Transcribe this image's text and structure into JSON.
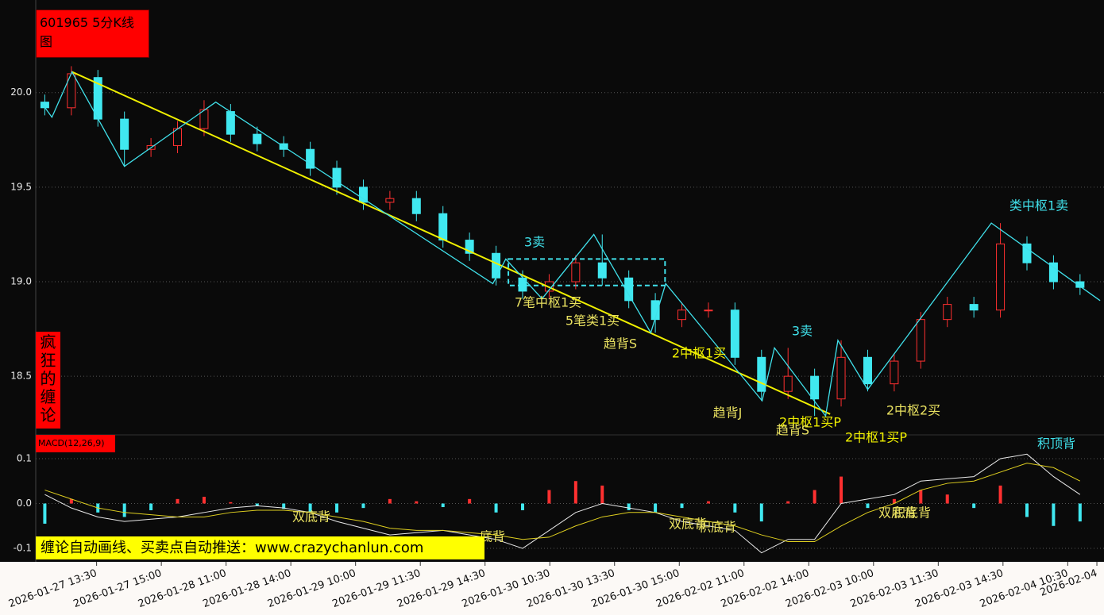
{
  "header": {
    "title": "601965 5分K线图",
    "side_label": "疯狂的缠论",
    "banner": "缠论自动画线、买卖点自动推送：www.crazychanlun.com"
  },
  "chart_data": [
    {
      "type": "candlestick",
      "x": [
        -0.8,
        -0.39,
        0.02,
        0.43,
        0.84,
        1.25,
        1.66,
        2.07,
        2.48,
        2.89,
        3.3,
        3.71,
        4.12,
        4.53,
        4.94,
        5.35,
        5.76,
        6.17,
        6.58,
        6.99,
        7.4,
        7.81,
        8.22,
        8.63,
        9.04,
        9.45,
        9.86,
        10.27,
        10.68,
        11.09,
        11.5,
        11.91,
        12.32,
        12.73,
        13.14,
        13.55,
        13.96,
        14.37,
        14.78,
        15.19
      ],
      "open": [
        19.95,
        19.92,
        20.08,
        19.86,
        19.7,
        19.72,
        19.81,
        19.9,
        19.78,
        19.73,
        19.7,
        19.6,
        19.5,
        19.42,
        19.44,
        19.36,
        19.22,
        19.15,
        19.02,
        18.95,
        19.0,
        19.1,
        19.02,
        18.9,
        18.8,
        18.85,
        18.85,
        18.6,
        18.42,
        18.5,
        18.38,
        18.6,
        18.46,
        18.58,
        18.8,
        18.88,
        18.85,
        19.2,
        19.1,
        19.0
      ],
      "high": [
        19.99,
        20.14,
        20.12,
        19.9,
        19.76,
        19.85,
        19.96,
        19.94,
        19.82,
        19.77,
        19.74,
        19.64,
        19.54,
        19.48,
        19.48,
        19.4,
        19.26,
        19.19,
        19.06,
        19.04,
        19.14,
        19.25,
        19.06,
        18.94,
        18.89,
        18.89,
        18.89,
        18.64,
        18.65,
        18.54,
        18.69,
        18.64,
        18.62,
        18.84,
        18.92,
        18.92,
        19.31,
        19.24,
        19.14,
        19.04
      ],
      "low": [
        19.88,
        19.88,
        19.82,
        19.61,
        19.66,
        19.68,
        19.77,
        19.74,
        19.69,
        19.66,
        19.56,
        19.46,
        19.38,
        19.38,
        19.32,
        19.18,
        19.11,
        18.98,
        18.91,
        18.91,
        18.96,
        18.98,
        18.86,
        18.73,
        18.76,
        18.81,
        18.56,
        18.37,
        18.38,
        18.29,
        18.34,
        18.42,
        18.42,
        18.54,
        18.76,
        18.81,
        18.81,
        19.06,
        18.96,
        18.93
      ],
      "close": [
        19.92,
        20.1,
        19.86,
        19.7,
        19.72,
        19.81,
        19.91,
        19.78,
        19.73,
        19.7,
        19.6,
        19.5,
        19.42,
        19.44,
        19.36,
        19.22,
        19.15,
        19.02,
        18.95,
        19.0,
        19.1,
        19.02,
        18.9,
        18.8,
        18.85,
        18.85,
        18.6,
        18.42,
        18.5,
        18.38,
        18.6,
        18.46,
        18.58,
        18.8,
        18.88,
        18.85,
        19.2,
        19.1,
        19.0,
        18.97
      ],
      "up_color": "#ff3030",
      "down_color": "#40e8f0",
      "strokes": {
        "color": "#40e0ea",
        "x": [
          -0.86,
          -0.69,
          -0.38,
          0.43,
          1.84,
          6.12,
          6.32,
          6.88,
          7.68,
          8.56,
          8.79,
          10.28,
          10.47,
          11.26,
          11.45,
          11.91,
          13.82,
          15.5
        ],
        "y": [
          19.95,
          19.87,
          20.11,
          19.61,
          19.95,
          18.99,
          19.12,
          18.91,
          19.25,
          18.73,
          18.99,
          18.37,
          18.65,
          18.29,
          18.69,
          18.43,
          19.31,
          18.9
        ]
      },
      "trend": {
        "color": "#f0f000",
        "x": [
          -0.38,
          11.33
        ],
        "y": [
          20.11,
          18.3
        ]
      },
      "center_box": {
        "color": "#40e0ea",
        "x": [
          6.36,
          8.78
        ],
        "y": [
          18.98,
          19.12
        ]
      },
      "annotations": [
        "3卖",
        "类中枢1卖",
        "3卖",
        "7笔中枢1买",
        "5笔类1买",
        "趋背S",
        "2中枢1买",
        "趋背J",
        "2中枢1买P",
        "趋背S",
        "2中枢1买P",
        "2中枢2买"
      ],
      "xlim": [
        -0.94,
        15.56
      ],
      "xticks": [
        {
          "value": 0,
          "label": "2026-01-27 13:30"
        },
        {
          "value": 1,
          "label": "2026-01-27 15:00"
        },
        {
          "value": 2,
          "label": "2026-01-28 11:00"
        },
        {
          "value": 3,
          "label": "2026-01-28 14:00"
        },
        {
          "value": 4,
          "label": "2026-01-29 10:00"
        },
        {
          "value": 5,
          "label": "2026-01-29 11:30"
        },
        {
          "value": 6,
          "label": "2026-01-29 14:30"
        },
        {
          "value": 7,
          "label": "2026-01-30 10:30"
        },
        {
          "value": 8,
          "label": "2026-01-30 13:30"
        },
        {
          "value": 9,
          "label": "2026-01-30 15:00"
        },
        {
          "value": 10,
          "label": "2026-02-02 11:00"
        },
        {
          "value": 11,
          "label": "2026-02-02 14:00"
        },
        {
          "value": 12,
          "label": "2026-02-03 10:00"
        },
        {
          "value": 13,
          "label": "2026-02-03 11:30"
        },
        {
          "value": 14,
          "label": "2026-02-03 14:30"
        },
        {
          "value": 15,
          "label": "2026-02-04 10:30"
        },
        {
          "value": 15.45,
          "label": "2026-02-04"
        }
      ],
      "ylim": [
        18.19,
        20.49
      ],
      "yticks": [
        18.5,
        {
          "value": 19,
          "label": "19.0"
        },
        19.5,
        {
          "value": 20,
          "label": "20.0"
        }
      ],
      "grid": true
    },
    {
      "type": "macd",
      "title": "MACD(12,26,9)",
      "x": [
        -0.8,
        -0.39,
        0.02,
        0.43,
        0.84,
        1.25,
        1.66,
        2.07,
        2.48,
        2.89,
        3.3,
        3.71,
        4.12,
        4.53,
        4.94,
        5.35,
        5.76,
        6.17,
        6.58,
        6.99,
        7.4,
        7.81,
        8.22,
        8.63,
        9.04,
        9.45,
        9.86,
        10.27,
        10.68,
        11.09,
        11.5,
        11.91,
        12.32,
        12.73,
        13.14,
        13.55,
        13.96,
        14.37,
        14.78,
        15.19
      ],
      "hist": {
        "up_color": "#ff3030",
        "down_color": "#40e8f0",
        "values": [
          -0.045,
          0.01,
          -0.02,
          -0.03,
          -0.015,
          0.01,
          0.015,
          0.003,
          -0.005,
          -0.012,
          -0.02,
          -0.02,
          -0.01,
          0.01,
          0.005,
          -0.008,
          0.01,
          -0.02,
          -0.015,
          0.03,
          0.05,
          0.04,
          -0.015,
          -0.02,
          -0.01,
          0.005,
          -0.02,
          -0.04,
          0.005,
          0.03,
          0.06,
          -0.01,
          0.01,
          0.03,
          0.02,
          -0.01,
          0.04,
          -0.03,
          -0.05,
          -0.04
        ]
      },
      "series": [
        {
          "color": "#e8e8e8",
          "values": [
            0.02,
            -0.01,
            -0.03,
            -0.04,
            -0.035,
            -0.03,
            -0.02,
            -0.01,
            -0.005,
            -0.01,
            -0.02,
            -0.04,
            -0.055,
            -0.07,
            -0.065,
            -0.06,
            -0.07,
            -0.08,
            -0.1,
            -0.06,
            -0.02,
            0.0,
            -0.01,
            -0.02,
            -0.04,
            -0.05,
            -0.06,
            -0.11,
            -0.08,
            -0.08,
            0.0,
            0.01,
            0.02,
            0.05,
            0.055,
            0.06,
            0.1,
            0.11,
            0.06,
            0.02
          ]
        },
        {
          "color": "#e0d020",
          "values": [
            0.03,
            0.01,
            -0.01,
            -0.02,
            -0.025,
            -0.03,
            -0.03,
            -0.02,
            -0.015,
            -0.015,
            -0.02,
            -0.03,
            -0.04,
            -0.055,
            -0.06,
            -0.06,
            -0.065,
            -0.07,
            -0.08,
            -0.075,
            -0.05,
            -0.03,
            -0.02,
            -0.02,
            -0.03,
            -0.04,
            -0.05,
            -0.07,
            -0.085,
            -0.085,
            -0.05,
            -0.02,
            0.0,
            0.03,
            0.045,
            0.05,
            0.07,
            0.09,
            0.08,
            0.05
          ]
        }
      ],
      "annotations": [
        "双底背",
        "底背",
        "双底背",
        "积底背",
        "双底背",
        "积底背",
        "积顶背"
      ],
      "xlim": [
        -0.94,
        15.56
      ],
      "ylim": [
        -0.13,
        0.153
      ],
      "yticks": [
        -0.1,
        {
          "value": 0,
          "label": "0.0"
        },
        0.1
      ],
      "grid": true
    }
  ]
}
